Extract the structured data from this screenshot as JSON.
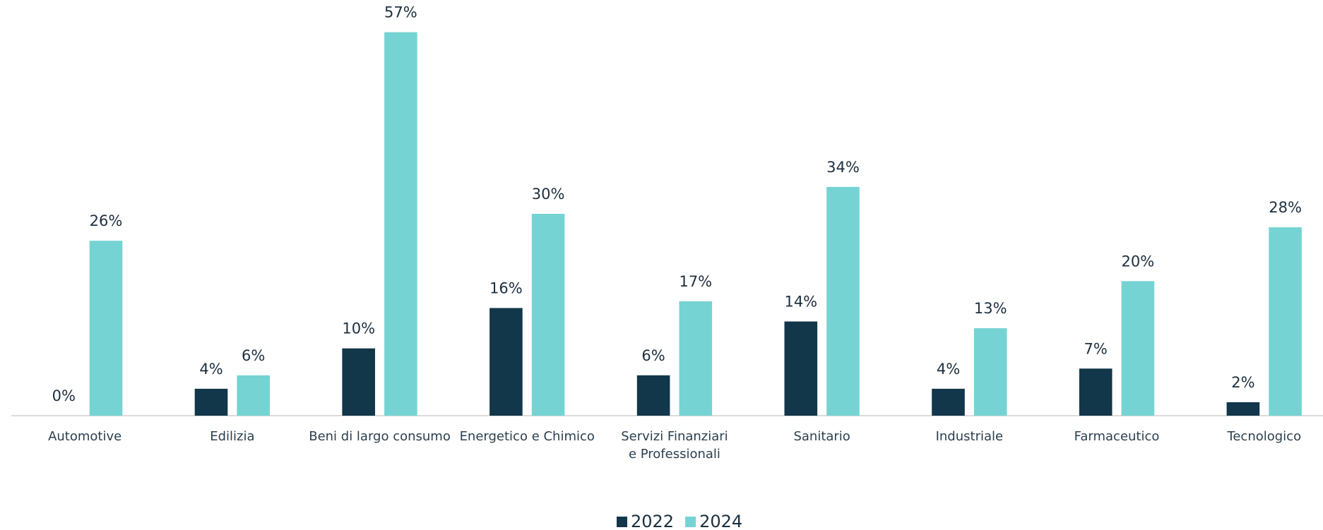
{
  "chart_data": {
    "type": "bar",
    "categories": [
      "Automotive",
      "Edilizia",
      "Beni di largo consumo",
      "Energetico e Chimico",
      "Servizi Finanziari\ne Professionali",
      "Sanitario",
      "Industriale",
      "Farmaceutico",
      "Tecnologico"
    ],
    "series": [
      {
        "name": "2022",
        "color": "#12364a",
        "values": [
          0,
          4,
          10,
          16,
          6,
          14,
          4,
          7,
          2
        ],
        "value_labels": [
          "0%",
          "4%",
          "10%",
          "16%",
          "6%",
          "14%",
          "4%",
          "7%",
          "2%"
        ]
      },
      {
        "name": "2024",
        "color": "#76d3d3",
        "values": [
          26,
          6,
          57,
          30,
          17,
          34,
          13,
          20,
          28
        ],
        "value_labels": [
          "26%",
          "6%",
          "57%",
          "30%",
          "17%",
          "34%",
          "13%",
          "20%",
          "28%"
        ]
      }
    ],
    "ylim": [
      0,
      60
    ],
    "legend": "bottom"
  }
}
